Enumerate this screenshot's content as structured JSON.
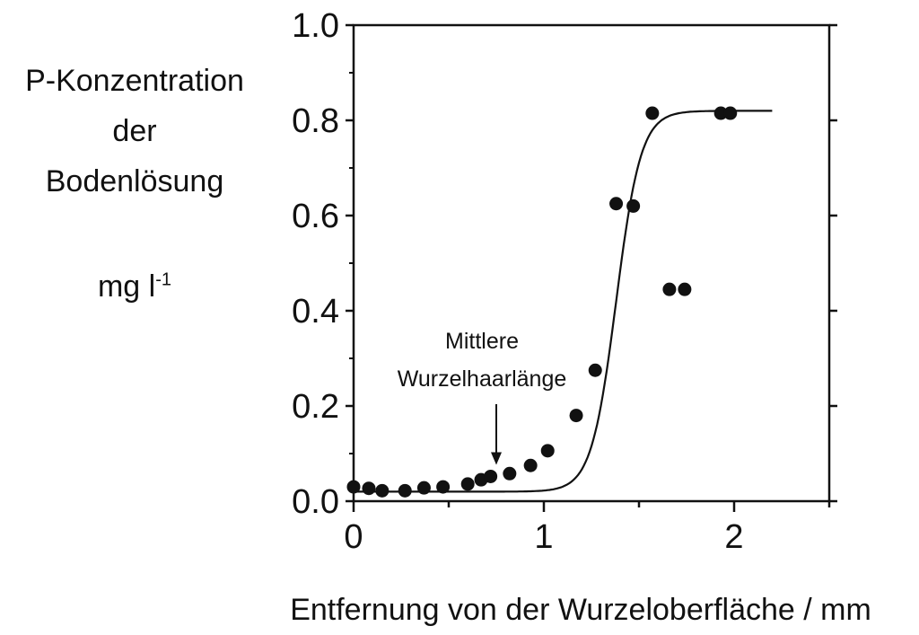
{
  "chart_data": {
    "type": "scatter",
    "ylabel_lines": [
      "P-Konzentration",
      "der",
      "Bodenlösung"
    ],
    "yunit": "mg l",
    "yunit_exp": "-1",
    "xlabel": "Entfernung von der Wurzeloberfläche / mm",
    "xlim": [
      0,
      2.5
    ],
    "ylim": [
      0,
      1.0
    ],
    "xticks": [
      0,
      1,
      2
    ],
    "xtick_labels": [
      "0",
      "1",
      "2"
    ],
    "yticks": [
      0.0,
      0.2,
      0.4,
      0.6,
      0.8,
      1.0
    ],
    "ytick_labels": [
      "0.0",
      "0.2",
      "0.4",
      "0.6",
      "0.8",
      "1.0"
    ],
    "points": [
      [
        0.0,
        0.03
      ],
      [
        0.08,
        0.027
      ],
      [
        0.15,
        0.022
      ],
      [
        0.27,
        0.022
      ],
      [
        0.37,
        0.028
      ],
      [
        0.47,
        0.03
      ],
      [
        0.6,
        0.036
      ],
      [
        0.67,
        0.045
      ],
      [
        0.72,
        0.052
      ],
      [
        0.82,
        0.058
      ],
      [
        0.93,
        0.075
      ],
      [
        1.02,
        0.106
      ],
      [
        1.17,
        0.18
      ],
      [
        1.27,
        0.275
      ],
      [
        1.38,
        0.625
      ],
      [
        1.47,
        0.62
      ],
      [
        1.57,
        0.815
      ],
      [
        1.66,
        0.445
      ],
      [
        1.74,
        0.445
      ],
      [
        1.93,
        0.815
      ],
      [
        1.98,
        0.815
      ]
    ],
    "fit_curve": {
      "type": "sigmoid",
      "baseline": 0.02,
      "plateau": 0.82,
      "midpoint": 1.38,
      "steepness": 0.065,
      "x_range": [
        0,
        2.2
      ]
    },
    "annotation": {
      "lines": [
        "Mittlere",
        "Wurzelhaarlänge"
      ],
      "arrow_x": 0.75,
      "arrow_y": 0.065
    },
    "grid": false,
    "legend": "none"
  }
}
